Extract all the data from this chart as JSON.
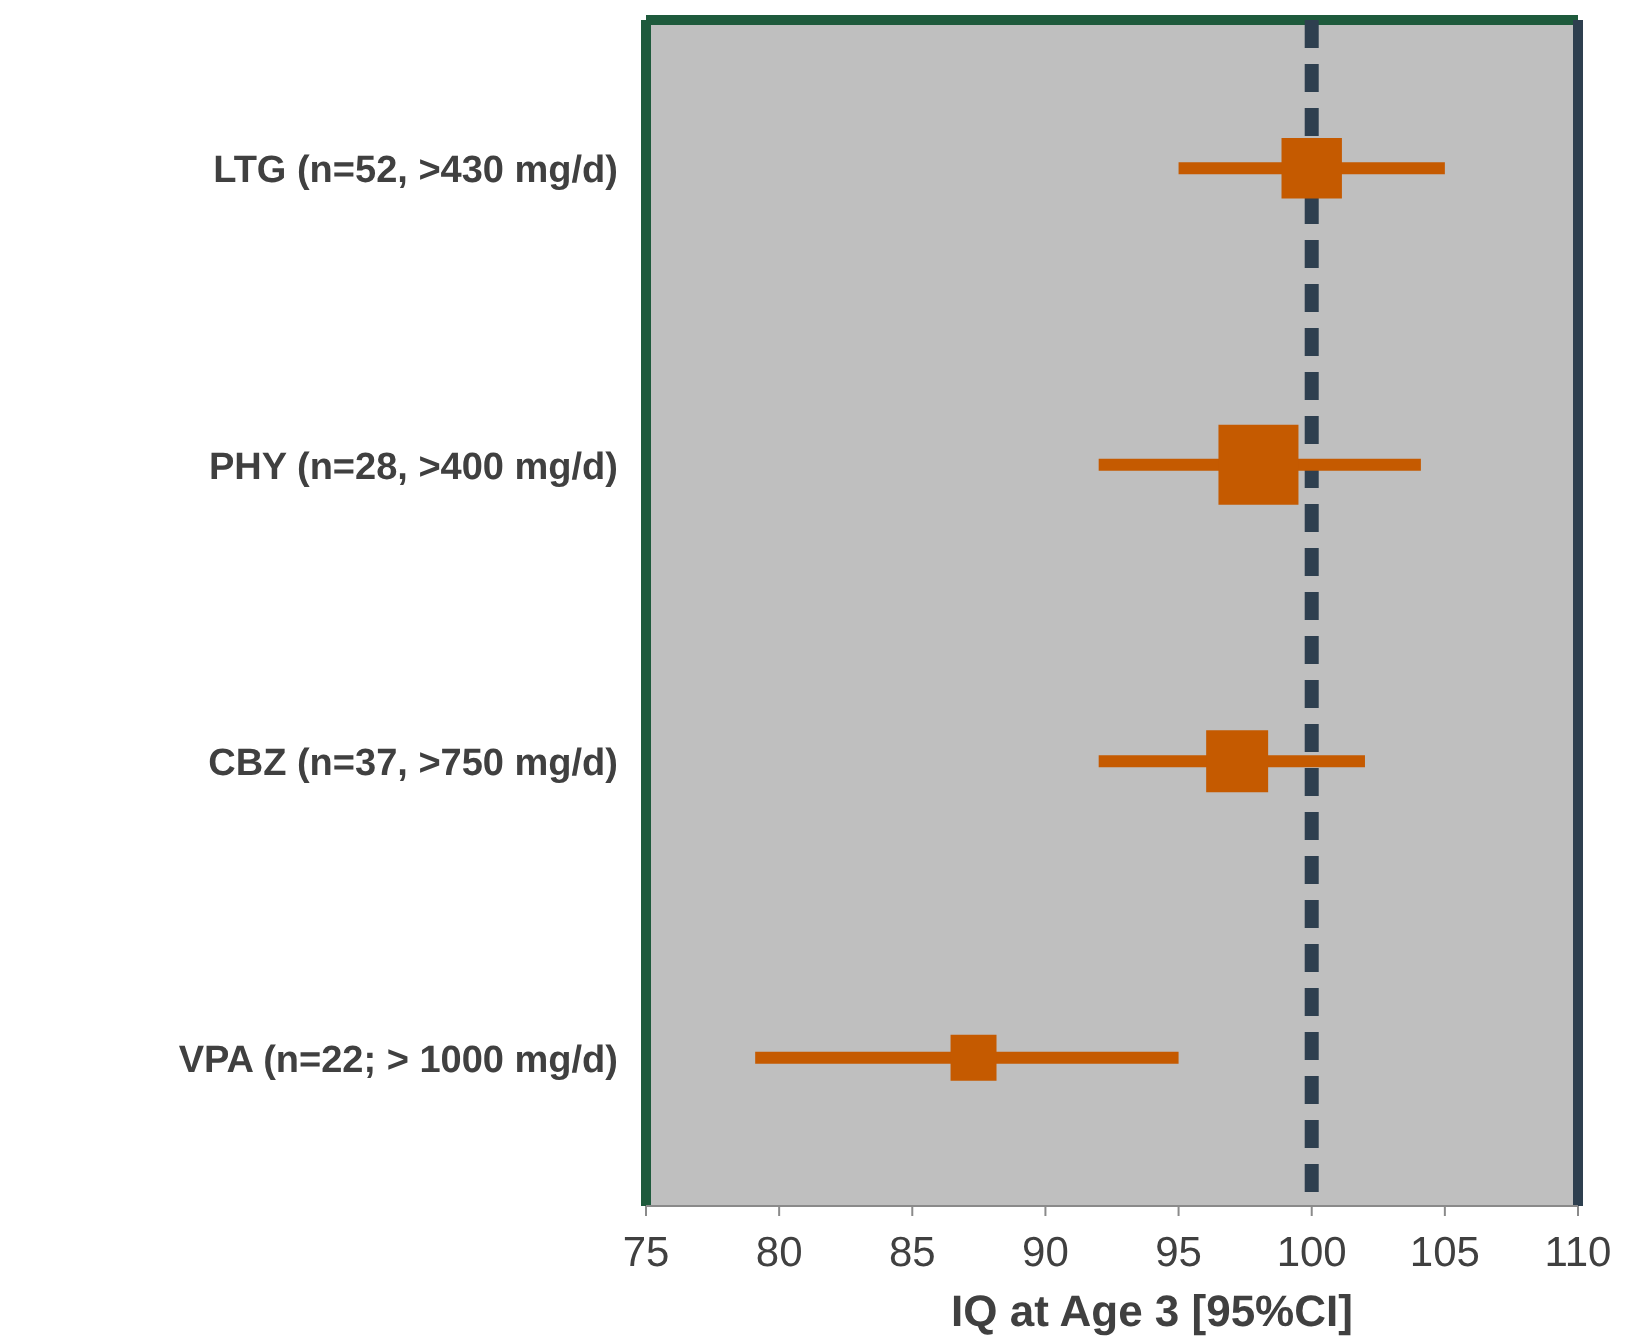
{
  "chart_data": {
    "type": "bubble",
    "orientation": "horizontal",
    "xlabel": "IQ at Age 3 [95%CI]",
    "categories": [
      "LTG (n=52, >430 mg/d)",
      "PHY (n=28, >400 mg/d)",
      "CBZ (n=37, >750 mg/d)",
      "VPA (n=22; > 1000 mg/d)"
    ],
    "series": [
      {
        "color": "#c55a00",
        "values": [
          100.0,
          98.0,
          97.2,
          87.3
        ],
        "sizes": [
          0.57,
          1,
          0.6,
          0.33
        ],
        "errors": [
          [
            95.0,
            105.0
          ],
          [
            92.0,
            104.1
          ],
          [
            92.0,
            102.0
          ],
          [
            79.1,
            95.0
          ]
        ]
      }
    ],
    "marker": "square",
    "xlim": [
      75,
      110
    ],
    "xticks": [
      75,
      80,
      85,
      90,
      95,
      100,
      105,
      110
    ],
    "ref_lines": [
      {
        "axis": "x",
        "value": 100,
        "color": "#2e3f4f",
        "line_style": "dashed"
      }
    ],
    "grid": false
  }
}
